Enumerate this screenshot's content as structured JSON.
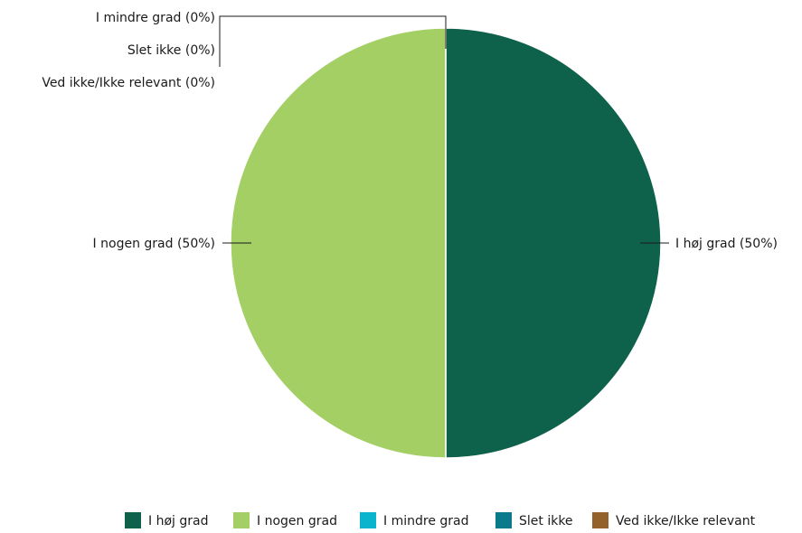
{
  "chart_data": {
    "type": "pie",
    "title": "",
    "slices": [
      {
        "label": "I høj grad",
        "value": 50,
        "display": "I høj grad (50%)",
        "color": "#0e614a"
      },
      {
        "label": "I nogen grad",
        "value": 50,
        "display": "I nogen grad (50%)",
        "color": "#a3cf65"
      },
      {
        "label": "I mindre grad",
        "value": 0,
        "display": "I mindre grad (0%)",
        "color": "#0ab4cc"
      },
      {
        "label": "Slet ikke",
        "value": 0,
        "display": "Slet ikke (0%)",
        "color": "#0b7a8a"
      },
      {
        "label": "Ved ikke/Ikke relevant",
        "value": 0,
        "display": "Ved ikke/Ikke relevant (0%)",
        "color": "#93622a"
      }
    ],
    "legend": {
      "position": "bottom-right",
      "items": [
        "I høj grad",
        "I nogen grad",
        "I mindre grad",
        "Slet ikke",
        "Ved ikke/Ikke relevant"
      ]
    }
  }
}
